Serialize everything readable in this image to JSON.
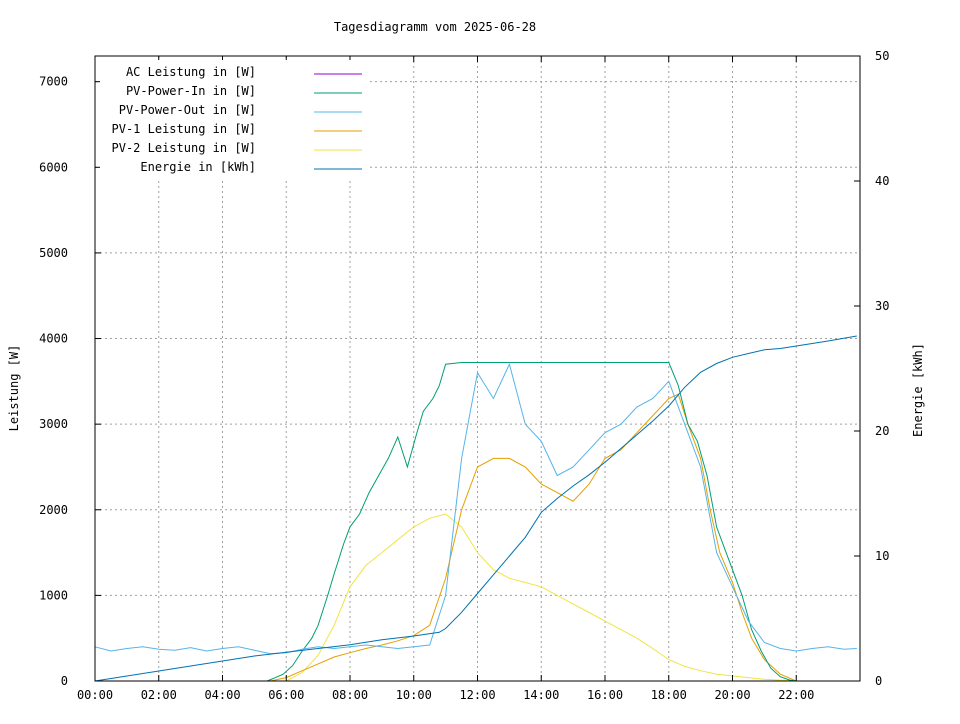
{
  "chart_data": {
    "type": "line",
    "title": "Tagesdiagramm vom 2025-06-28",
    "xlabel": "",
    "ylabel": "Leistung [W]",
    "y2label": "Energie [kWh]",
    "xlim_hours": [
      0,
      24
    ],
    "ylim": [
      0,
      7300
    ],
    "y2lim": [
      0,
      50
    ],
    "x_ticks": [
      "00:00",
      "02:00",
      "04:00",
      "06:00",
      "08:00",
      "10:00",
      "12:00",
      "14:00",
      "16:00",
      "18:00",
      "20:00",
      "22:00"
    ],
    "y_ticks": [
      0,
      1000,
      2000,
      3000,
      4000,
      5000,
      6000,
      7000
    ],
    "y2_ticks": [
      0,
      10,
      20,
      30,
      40,
      50
    ],
    "grid": true,
    "legend_position": "top-left",
    "series": [
      {
        "name": "AC Leistung in [W]",
        "color": "#9400d3",
        "axis": "y1",
        "points": []
      },
      {
        "name": "PV-Power-In in [W]",
        "color": "#009e73",
        "axis": "y1",
        "points": [
          [
            5.4,
            0
          ],
          [
            5.6,
            30
          ],
          [
            5.9,
            80
          ],
          [
            6.2,
            180
          ],
          [
            6.5,
            350
          ],
          [
            6.8,
            500
          ],
          [
            7.0,
            650
          ],
          [
            7.3,
            1000
          ],
          [
            7.5,
            1250
          ],
          [
            7.8,
            1600
          ],
          [
            8.0,
            1800
          ],
          [
            8.3,
            1950
          ],
          [
            8.6,
            2200
          ],
          [
            8.9,
            2400
          ],
          [
            9.2,
            2600
          ],
          [
            9.5,
            2850
          ],
          [
            9.8,
            2500
          ],
          [
            10.1,
            2900
          ],
          [
            10.3,
            3150
          ],
          [
            10.6,
            3300
          ],
          [
            10.8,
            3450
          ],
          [
            11.0,
            3700
          ],
          [
            11.5,
            3720
          ],
          [
            12.0,
            3720
          ],
          [
            12.5,
            3720
          ],
          [
            13.0,
            3720
          ],
          [
            13.5,
            3720
          ],
          [
            14.0,
            3720
          ],
          [
            14.5,
            3720
          ],
          [
            15.0,
            3720
          ],
          [
            15.5,
            3720
          ],
          [
            16.0,
            3720
          ],
          [
            16.5,
            3720
          ],
          [
            17.0,
            3720
          ],
          [
            17.5,
            3720
          ],
          [
            18.0,
            3720
          ],
          [
            18.3,
            3450
          ],
          [
            18.6,
            3000
          ],
          [
            18.9,
            2800
          ],
          [
            19.2,
            2400
          ],
          [
            19.5,
            1800
          ],
          [
            19.8,
            1500
          ],
          [
            20.0,
            1300
          ],
          [
            20.3,
            1000
          ],
          [
            20.6,
            600
          ],
          [
            20.9,
            350
          ],
          [
            21.2,
            150
          ],
          [
            21.5,
            50
          ],
          [
            21.8,
            10
          ],
          [
            22.0,
            0
          ]
        ]
      },
      {
        "name": "PV-Power-Out in [W]",
        "color": "#56b4e9",
        "axis": "y1",
        "points": [
          [
            0.0,
            400
          ],
          [
            0.5,
            350
          ],
          [
            1.0,
            380
          ],
          [
            1.5,
            400
          ],
          [
            2.0,
            370
          ],
          [
            2.5,
            360
          ],
          [
            3.0,
            390
          ],
          [
            3.5,
            350
          ],
          [
            4.0,
            380
          ],
          [
            4.5,
            400
          ],
          [
            5.0,
            360
          ],
          [
            5.5,
            320
          ],
          [
            6.0,
            330
          ],
          [
            6.5,
            370
          ],
          [
            7.0,
            400
          ],
          [
            7.5,
            380
          ],
          [
            8.0,
            400
          ],
          [
            8.5,
            420
          ],
          [
            9.0,
            400
          ],
          [
            9.5,
            380
          ],
          [
            10.0,
            400
          ],
          [
            10.5,
            420
          ],
          [
            11.0,
            1000
          ],
          [
            11.5,
            2600
          ],
          [
            12.0,
            3600
          ],
          [
            12.5,
            3300
          ],
          [
            13.0,
            3700
          ],
          [
            13.5,
            3000
          ],
          [
            14.0,
            2800
          ],
          [
            14.5,
            2400
          ],
          [
            15.0,
            2500
          ],
          [
            15.5,
            2700
          ],
          [
            16.0,
            2900
          ],
          [
            16.5,
            3000
          ],
          [
            17.0,
            3200
          ],
          [
            17.5,
            3300
          ],
          [
            18.0,
            3500
          ],
          [
            18.5,
            3000
          ],
          [
            19.0,
            2500
          ],
          [
            19.5,
            1500
          ],
          [
            20.0,
            1100
          ],
          [
            20.5,
            700
          ],
          [
            21.0,
            450
          ],
          [
            21.5,
            380
          ],
          [
            22.0,
            350
          ],
          [
            22.5,
            380
          ],
          [
            23.0,
            400
          ],
          [
            23.5,
            370
          ],
          [
            23.9,
            380
          ]
        ]
      },
      {
        "name": "PV-1 Leistung in [W]",
        "color": "#e69f00",
        "axis": "y1",
        "points": [
          [
            5.5,
            0
          ],
          [
            6.0,
            40
          ],
          [
            6.5,
            120
          ],
          [
            7.0,
            200
          ],
          [
            7.5,
            280
          ],
          [
            8.0,
            330
          ],
          [
            8.5,
            380
          ],
          [
            9.0,
            420
          ],
          [
            9.5,
            470
          ],
          [
            10.0,
            530
          ],
          [
            10.5,
            650
          ],
          [
            11.0,
            1200
          ],
          [
            11.5,
            2000
          ],
          [
            12.0,
            2500
          ],
          [
            12.5,
            2600
          ],
          [
            13.0,
            2600
          ],
          [
            13.5,
            2500
          ],
          [
            14.0,
            2300
          ],
          [
            14.5,
            2200
          ],
          [
            15.0,
            2100
          ],
          [
            15.5,
            2300
          ],
          [
            16.0,
            2600
          ],
          [
            16.5,
            2700
          ],
          [
            17.0,
            2900
          ],
          [
            17.5,
            3100
          ],
          [
            18.0,
            3300
          ],
          [
            18.3,
            3350
          ],
          [
            18.6,
            3000
          ],
          [
            19.0,
            2600
          ],
          [
            19.3,
            2000
          ],
          [
            19.6,
            1500
          ],
          [
            20.0,
            1150
          ],
          [
            20.3,
            800
          ],
          [
            20.6,
            500
          ],
          [
            21.0,
            250
          ],
          [
            21.5,
            80
          ],
          [
            22.0,
            0
          ]
        ]
      },
      {
        "name": "PV-2 Leistung in [W]",
        "color": "#f0e442",
        "axis": "y1",
        "points": [
          [
            6.0,
            0
          ],
          [
            6.5,
            100
          ],
          [
            7.0,
            300
          ],
          [
            7.5,
            650
          ],
          [
            8.0,
            1100
          ],
          [
            8.5,
            1350
          ],
          [
            9.0,
            1500
          ],
          [
            9.5,
            1650
          ],
          [
            10.0,
            1800
          ],
          [
            10.5,
            1900
          ],
          [
            11.0,
            1950
          ],
          [
            11.5,
            1800
          ],
          [
            12.0,
            1500
          ],
          [
            12.5,
            1300
          ],
          [
            13.0,
            1200
          ],
          [
            13.5,
            1150
          ],
          [
            14.0,
            1100
          ],
          [
            14.5,
            1000
          ],
          [
            15.0,
            900
          ],
          [
            15.5,
            800
          ],
          [
            16.0,
            700
          ],
          [
            16.5,
            600
          ],
          [
            17.0,
            500
          ],
          [
            17.5,
            380
          ],
          [
            18.0,
            250
          ],
          [
            18.5,
            170
          ],
          [
            19.0,
            120
          ],
          [
            19.5,
            80
          ],
          [
            20.0,
            60
          ],
          [
            20.5,
            40
          ],
          [
            21.0,
            20
          ],
          [
            21.5,
            10
          ],
          [
            22.0,
            0
          ]
        ]
      },
      {
        "name": "Energie in [kWh]",
        "color": "#0072b2",
        "axis": "y2",
        "points": [
          [
            0.0,
            0.0
          ],
          [
            1.0,
            0.4
          ],
          [
            2.0,
            0.8
          ],
          [
            3.0,
            1.2
          ],
          [
            4.0,
            1.6
          ],
          [
            5.0,
            2.0
          ],
          [
            6.0,
            2.3
          ],
          [
            7.0,
            2.6
          ],
          [
            8.0,
            2.9
          ],
          [
            9.0,
            3.3
          ],
          [
            10.0,
            3.6
          ],
          [
            10.8,
            3.9
          ],
          [
            11.0,
            4.2
          ],
          [
            11.5,
            5.5
          ],
          [
            12.0,
            7.0
          ],
          [
            12.5,
            8.5
          ],
          [
            13.0,
            10.0
          ],
          [
            13.5,
            11.5
          ],
          [
            14.0,
            13.5
          ],
          [
            14.5,
            14.6
          ],
          [
            15.0,
            15.6
          ],
          [
            15.5,
            16.5
          ],
          [
            16.0,
            17.5
          ],
          [
            16.5,
            18.6
          ],
          [
            17.0,
            19.7
          ],
          [
            17.5,
            20.8
          ],
          [
            18.0,
            22.0
          ],
          [
            18.5,
            23.5
          ],
          [
            19.0,
            24.7
          ],
          [
            19.5,
            25.4
          ],
          [
            20.0,
            25.9
          ],
          [
            20.5,
            26.2
          ],
          [
            21.0,
            26.5
          ],
          [
            21.5,
            26.6
          ],
          [
            22.0,
            26.8
          ],
          [
            23.0,
            27.2
          ],
          [
            23.9,
            27.6
          ]
        ]
      }
    ]
  }
}
